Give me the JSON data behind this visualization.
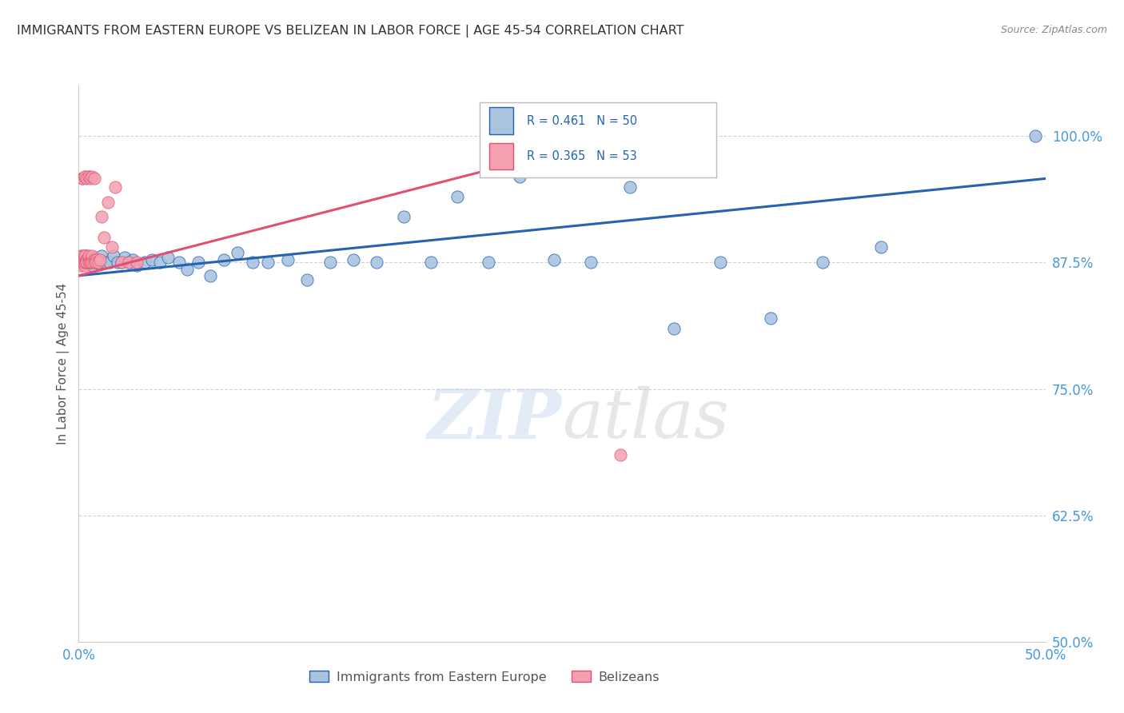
{
  "title": "IMMIGRANTS FROM EASTERN EUROPE VS BELIZEAN IN LABOR FORCE | AGE 45-54 CORRELATION CHART",
  "source": "Source: ZipAtlas.com",
  "ylabel": "In Labor Force | Age 45-54",
  "xlim": [
    0.0,
    0.5
  ],
  "ylim": [
    0.5,
    1.05
  ],
  "xticks": [
    0.0,
    0.1,
    0.2,
    0.3,
    0.4,
    0.5
  ],
  "xticklabels": [
    "0.0%",
    "",
    "",
    "",
    "",
    "50.0%"
  ],
  "yticks": [
    0.5,
    0.625,
    0.75,
    0.875,
    1.0
  ],
  "yticklabels": [
    "50.0%",
    "62.5%",
    "75.0%",
    "87.5%",
    "100.0%"
  ],
  "blue_R": 0.461,
  "blue_N": 50,
  "pink_R": 0.365,
  "pink_N": 53,
  "blue_color": "#aac4e0",
  "blue_line_color": "#2563b0",
  "pink_color": "#f4a0b0",
  "pink_line_color": "#e05070",
  "blue_scatter_x": [
    0.003,
    0.004,
    0.005,
    0.006,
    0.007,
    0.008,
    0.009,
    0.01,
    0.011,
    0.012,
    0.014,
    0.016,
    0.018,
    0.02,
    0.022,
    0.024,
    0.026,
    0.028,
    0.03,
    0.034,
    0.038,
    0.042,
    0.046,
    0.052,
    0.056,
    0.062,
    0.068,
    0.075,
    0.082,
    0.09,
    0.098,
    0.108,
    0.118,
    0.13,
    0.142,
    0.154,
    0.168,
    0.182,
    0.196,
    0.212,
    0.228,
    0.246,
    0.265,
    0.285,
    0.308,
    0.332,
    0.358,
    0.385,
    0.415,
    0.495
  ],
  "blue_scatter_y": [
    0.878,
    0.882,
    0.875,
    0.878,
    0.872,
    0.88,
    0.875,
    0.878,
    0.875,
    0.882,
    0.875,
    0.875,
    0.882,
    0.875,
    0.875,
    0.88,
    0.875,
    0.878,
    0.872,
    0.875,
    0.878,
    0.875,
    0.88,
    0.875,
    0.868,
    0.875,
    0.862,
    0.878,
    0.885,
    0.875,
    0.875,
    0.878,
    0.858,
    0.875,
    0.878,
    0.875,
    0.92,
    0.875,
    0.94,
    0.875,
    0.96,
    0.878,
    0.875,
    0.95,
    0.81,
    0.875,
    0.82,
    0.875,
    0.89,
    1.0
  ],
  "pink_scatter_x": [
    0.001,
    0.001,
    0.001,
    0.001,
    0.002,
    0.002,
    0.002,
    0.002,
    0.002,
    0.003,
    0.003,
    0.003,
    0.003,
    0.003,
    0.003,
    0.004,
    0.004,
    0.004,
    0.004,
    0.005,
    0.005,
    0.005,
    0.006,
    0.006,
    0.006,
    0.007,
    0.007,
    0.007,
    0.008,
    0.008,
    0.009,
    0.009,
    0.01,
    0.011,
    0.012,
    0.013,
    0.015,
    0.017,
    0.019,
    0.022,
    0.026,
    0.03,
    0.005,
    0.002,
    0.002,
    0.003,
    0.003,
    0.004,
    0.005,
    0.006,
    0.007,
    0.008,
    0.28
  ],
  "pink_scatter_y": [
    0.882,
    0.878,
    0.875,
    0.872,
    0.878,
    0.882,
    0.875,
    0.878,
    0.875,
    0.882,
    0.875,
    0.878,
    0.872,
    0.875,
    0.882,
    0.878,
    0.875,
    0.878,
    0.875,
    0.878,
    0.875,
    0.882,
    0.875,
    0.878,
    0.875,
    0.878,
    0.882,
    0.875,
    0.878,
    0.875,
    0.878,
    0.875,
    0.875,
    0.878,
    0.92,
    0.9,
    0.935,
    0.89,
    0.95,
    0.875,
    0.875,
    0.875,
    0.96,
    0.958,
    0.958,
    0.96,
    0.96,
    0.958,
    0.96,
    0.958,
    0.96,
    0.958,
    0.685
  ],
  "blue_trend_x": [
    0.0,
    0.5
  ],
  "blue_trend_y": [
    0.862,
    0.958
  ],
  "pink_trend_x": [
    0.0,
    0.3
  ],
  "pink_trend_y": [
    0.862,
    1.01
  ],
  "watermark_zip": "ZIP",
  "watermark_atlas": "atlas",
  "background_color": "#ffffff",
  "grid_color": "#cccccc",
  "title_color": "#333333",
  "axis_label_color": "#4499dd",
  "ylabel_color": "#555555"
}
